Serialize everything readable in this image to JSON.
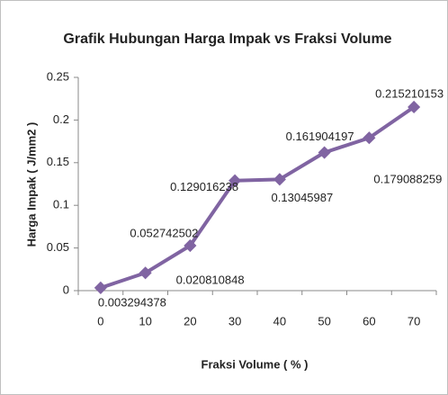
{
  "chart_data": {
    "type": "line",
    "title": "Grafik Hubungan Harga Impak vs Fraksi Volume",
    "x_label": "Fraksi Volume ( % )",
    "y_label": "Harga Impak ( J/mm2 )",
    "categories": [
      "0",
      "10",
      "20",
      "30",
      "40",
      "50",
      "60",
      "70"
    ],
    "series": [
      {
        "name": "Harga Impak",
        "color": "#8064a2",
        "values": [
          0.003294378,
          0.020810848,
          0.052742502,
          0.129016238,
          0.13045987,
          0.161904197,
          0.179088259,
          0.215210153
        ]
      }
    ],
    "ylim": [
      0,
      0.25
    ],
    "yticks": [
      0,
      0.05,
      0.1,
      0.15,
      0.2,
      0.25
    ],
    "grid": false
  }
}
